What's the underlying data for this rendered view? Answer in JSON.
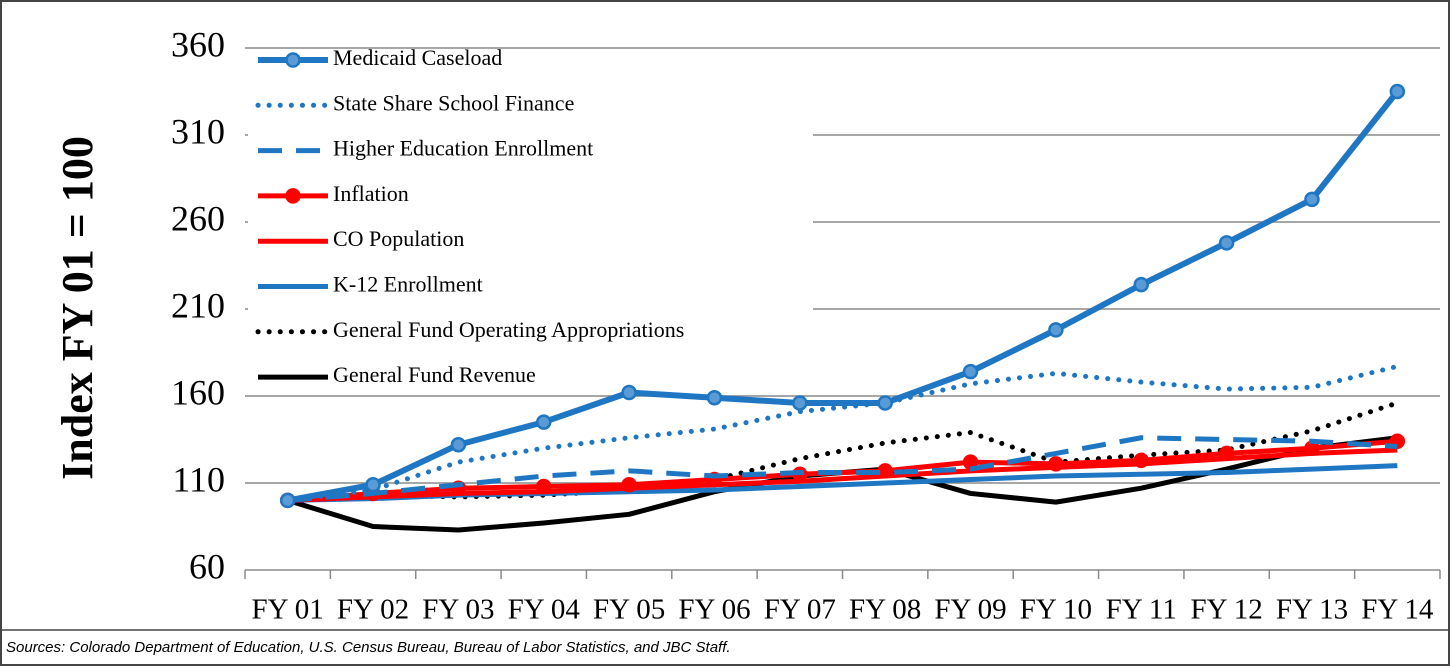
{
  "chart_data": {
    "type": "line",
    "y_axis_label": "Index FY 01 = 100",
    "source": "Sources:  Colorado Department of Education, U.S. Census Bureau, Bureau of Labor Statistics, and JBC Staff.",
    "categories": [
      "FY 01",
      "FY 02",
      "FY 03",
      "FY 04",
      "FY 05",
      "FY 06",
      "FY 07",
      "FY 08",
      "FY 09",
      "FY 10",
      "FY 11",
      "FY 12",
      "FY 13",
      "FY 14"
    ],
    "ylim": [
      60,
      360
    ],
    "yticks": [
      60,
      110,
      160,
      210,
      260,
      310,
      360
    ],
    "grid": true,
    "legend": "upper left",
    "series": [
      {
        "name": "Medicaid Caseload",
        "color": "#1f77c4",
        "style": "solid",
        "marker": true,
        "values": [
          100,
          109,
          132,
          145,
          162,
          159,
          156,
          156,
          174,
          198,
          224,
          248,
          273,
          335
        ]
      },
      {
        "name": "State Share School Finance",
        "color": "#1f77c4",
        "style": "dotted",
        "marker": false,
        "values": [
          100,
          106,
          122,
          130,
          136,
          141,
          151,
          156,
          167,
          173,
          168,
          164,
          165,
          177
        ]
      },
      {
        "name": "Higher Education Enrollment",
        "color": "#1f77c4",
        "style": "dashed",
        "marker": false,
        "values": [
          100,
          104,
          109,
          114,
          117,
          114,
          116,
          116,
          118,
          127,
          136,
          135,
          134,
          131
        ]
      },
      {
        "name": "Inflation",
        "color": "#ff0000",
        "style": "solid",
        "marker": true,
        "values": [
          100,
          104,
          107,
          108,
          109,
          112,
          115,
          117,
          122,
          121,
          123,
          127,
          130,
          134
        ]
      },
      {
        "name": "CO Population",
        "color": "#ff0000",
        "style": "solid",
        "marker": false,
        "values": [
          100,
          102,
          104,
          105,
          107,
          109,
          111,
          114,
          117,
          119,
          121,
          124,
          127,
          129
        ]
      },
      {
        "name": "K-12 Enrollment",
        "color": "#1f77c4",
        "style": "solid",
        "marker": false,
        "values": [
          100,
          101,
          103,
          104,
          105,
          106,
          108,
          110,
          112,
          114,
          115,
          116,
          118,
          120
        ]
      },
      {
        "name": "General Fund Operating Appropriations",
        "color": "#000000",
        "style": "dotted",
        "marker": false,
        "values": [
          100,
          103,
          102,
          103,
          106,
          112,
          124,
          133,
          139,
          122,
          126,
          129,
          140,
          156
        ]
      },
      {
        "name": "General Fund Revenue",
        "color": "#000000",
        "style": "solid",
        "marker": false,
        "values": [
          100,
          85,
          83,
          87,
          92,
          105,
          114,
          118,
          104,
          99,
          107,
          118,
          130,
          136
        ]
      }
    ]
  }
}
